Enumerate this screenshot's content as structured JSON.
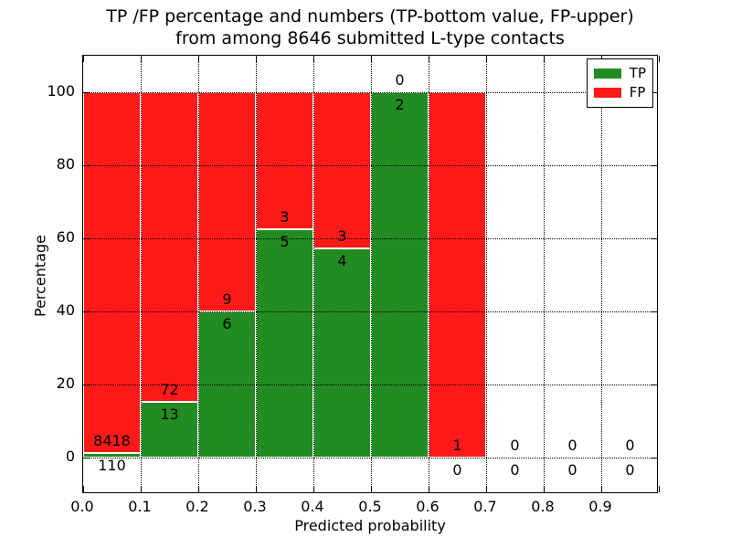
{
  "chart_data": {
    "type": "bar",
    "stacked": true,
    "title_lines": [
      "TP /FP percentage and numbers (TP-bottom value, FP-upper)",
      "from among 8646 submitted L-type contacts"
    ],
    "xlabel": "Predicted probability",
    "ylabel": "Percentage",
    "bin_width": 0.1,
    "bin_starts": [
      0.0,
      0.1,
      0.2,
      0.3,
      0.4,
      0.5,
      0.6,
      0.7,
      0.8,
      0.9
    ],
    "series": [
      {
        "name": "TP",
        "color": "#228b22",
        "values": [
          110,
          13,
          6,
          5,
          4,
          2,
          0,
          0,
          0,
          0
        ]
      },
      {
        "name": "FP",
        "color": "#ff1a1a",
        "values": [
          8418,
          72,
          9,
          3,
          3,
          0,
          1,
          0,
          0,
          0
        ]
      }
    ],
    "bar_value_meaning": "green segment height = TP/(TP+FP)*100, red fills up to 100%",
    "green_percentages": [
      1.3,
      15.3,
      40.0,
      62.5,
      57.1,
      100.0,
      0.0,
      0.0,
      0.0,
      0.0
    ],
    "annotation_rule": "FP count above segment boundary, TP count below boundary",
    "x_ticks": [
      "0.0",
      "0.1",
      "0.2",
      "0.3",
      "0.4",
      "0.5",
      "0.6",
      "0.7",
      "0.8",
      "0.9"
    ],
    "y_ticks": [
      0,
      20,
      40,
      60,
      80,
      100
    ],
    "xlim": [
      0.0,
      1.0
    ],
    "ylim": [
      -10,
      110
    ],
    "grid": "dotted black, horizontal every 20%, vertical every 0.1",
    "legend": {
      "position": "upper right",
      "entries": [
        "TP",
        "FP"
      ]
    }
  }
}
